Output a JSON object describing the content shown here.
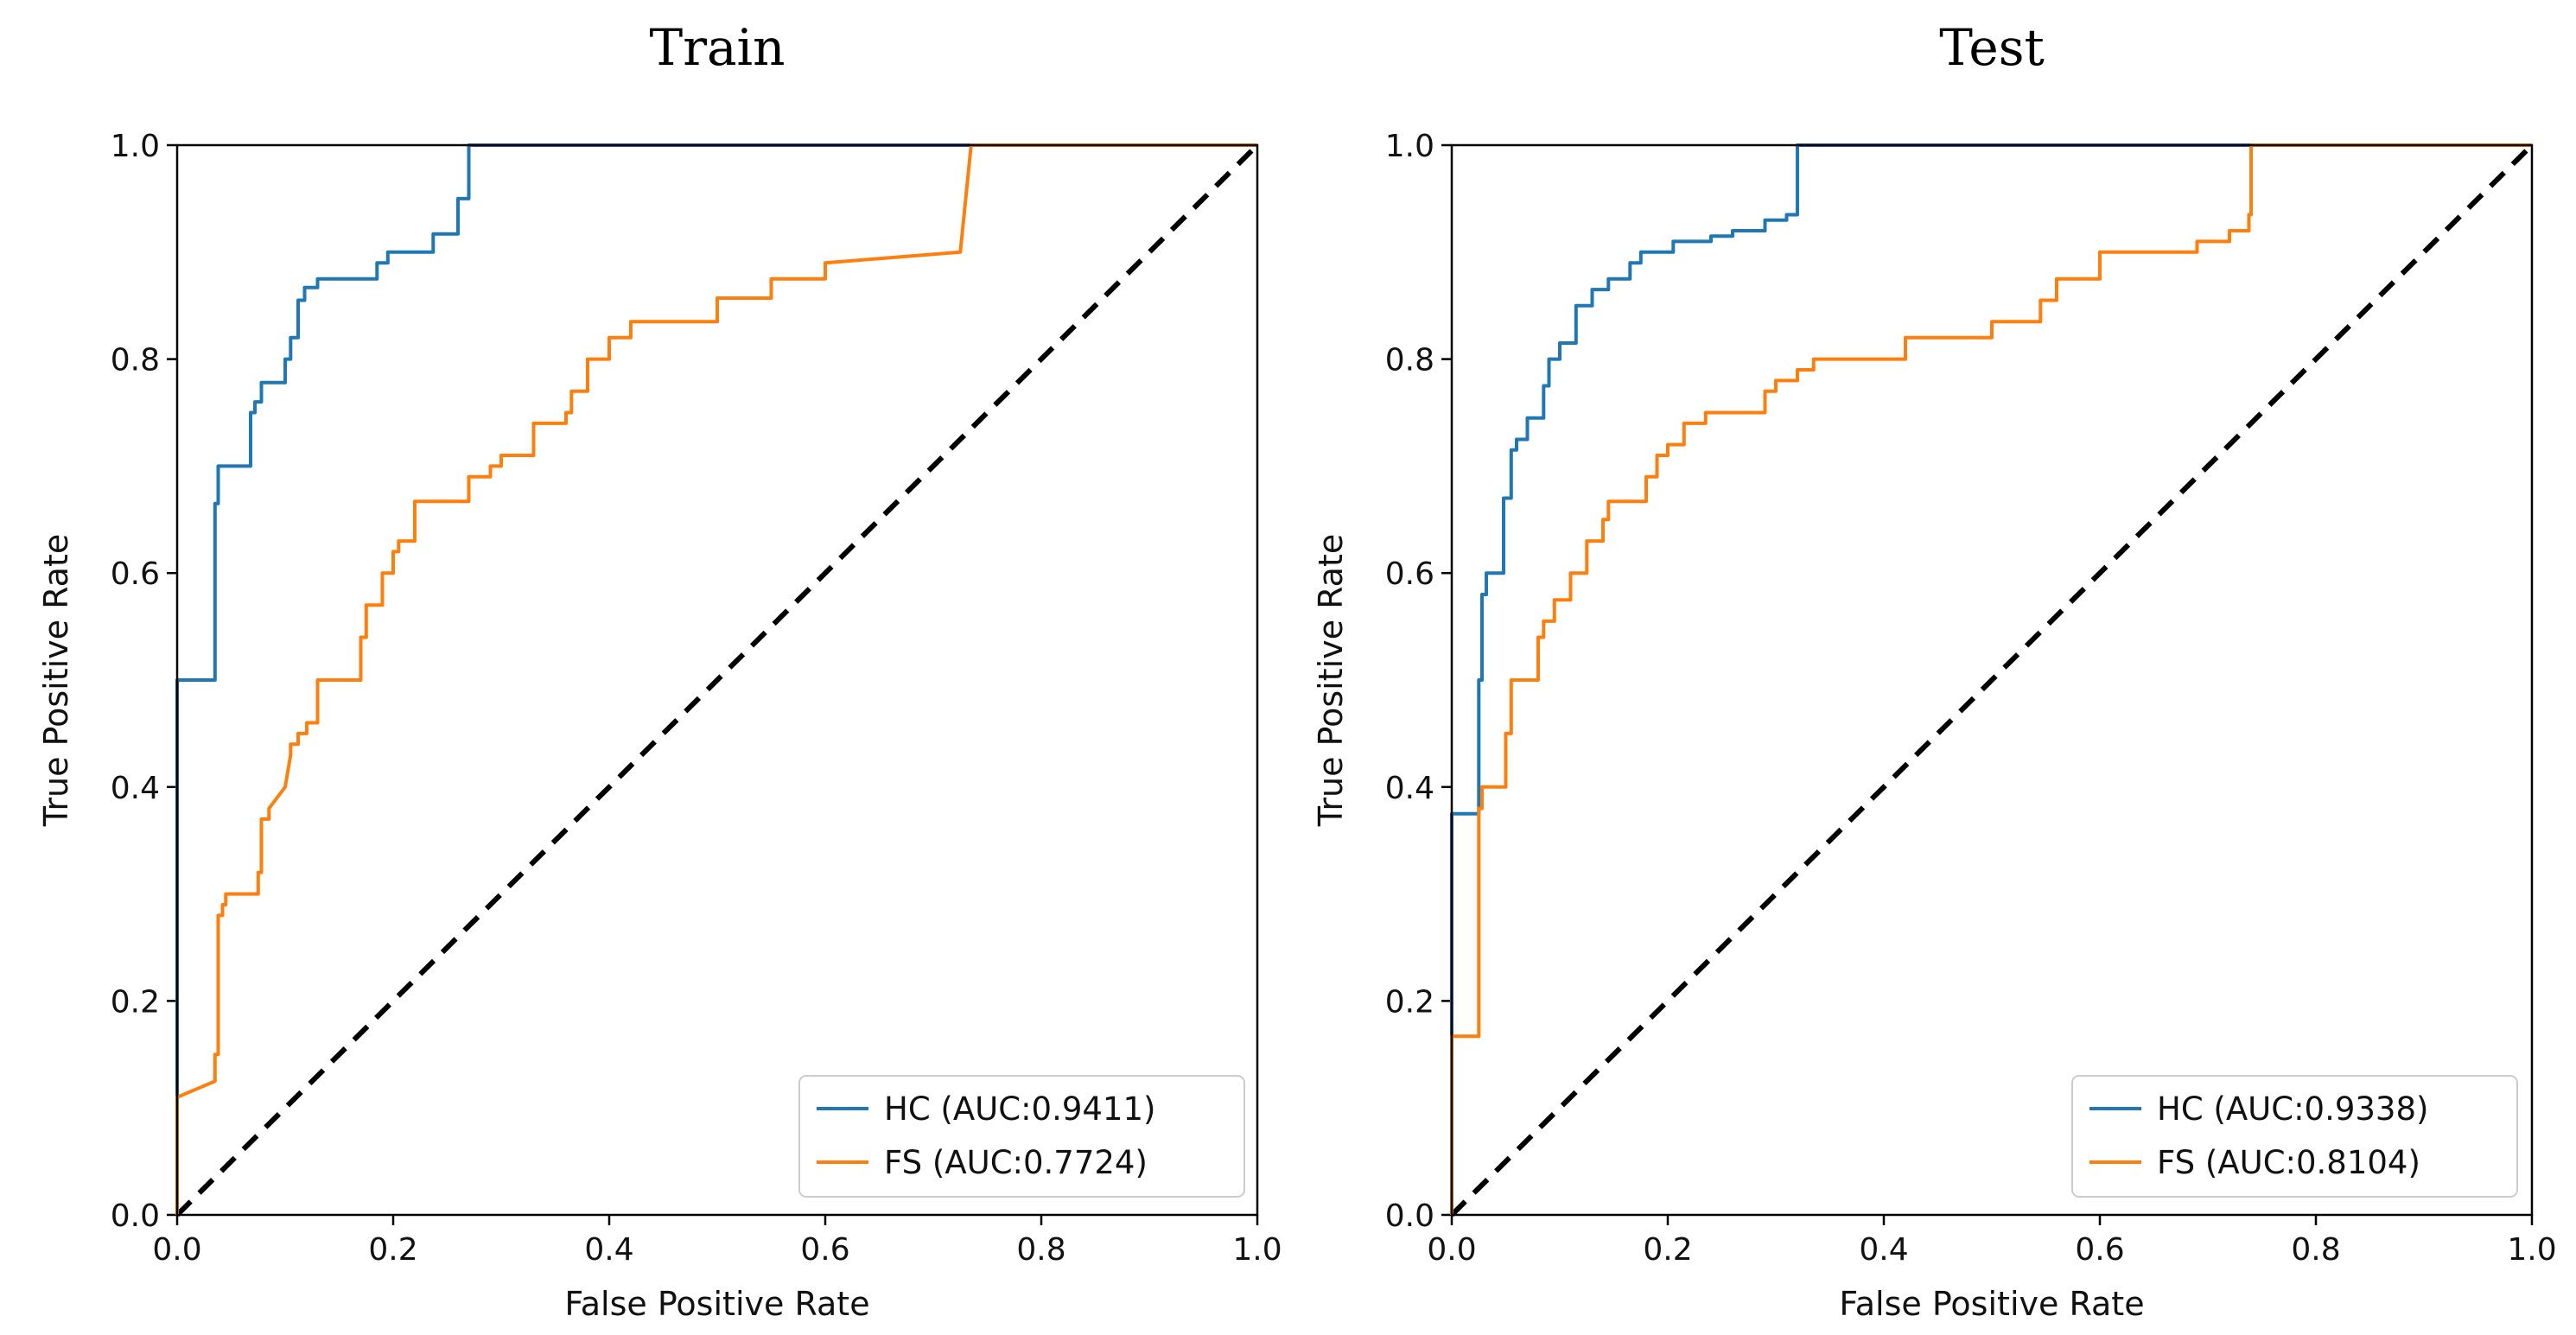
{
  "chart_data": [
    {
      "type": "line",
      "title": "Train",
      "xlabel": "False Positive Rate",
      "ylabel": "True Positive Rate",
      "xlim": [
        0.0,
        1.0
      ],
      "ylim": [
        0.0,
        1.0
      ],
      "xticks": [
        "0.0",
        "0.2",
        "0.4",
        "0.6",
        "0.8",
        "1.0"
      ],
      "yticks": [
        "0.0",
        "0.2",
        "0.4",
        "0.6",
        "0.8",
        "1.0"
      ],
      "legend_position": "lower-right",
      "chance_line": {
        "x": [
          0,
          1
        ],
        "y": [
          0,
          1
        ],
        "style": "dashed",
        "color": "#000000"
      },
      "series": [
        {
          "name": "HC (AUC:0.9411)",
          "color": "#1f77b4",
          "x": [
            0.0,
            0.0,
            0.0,
            0.035,
            0.035,
            0.038,
            0.038,
            0.042,
            0.042,
            0.068,
            0.068,
            0.072,
            0.072,
            0.078,
            0.078,
            0.1,
            0.1,
            0.105,
            0.105,
            0.112,
            0.112,
            0.118,
            0.118,
            0.13,
            0.13,
            0.185,
            0.185,
            0.195,
            0.195,
            0.2,
            0.2,
            0.225,
            0.225,
            0.237,
            0.237,
            0.26,
            0.26,
            0.27,
            0.27,
            0.73,
            1.0
          ],
          "y": [
            0.0,
            0.5,
            0.5,
            0.5,
            0.665,
            0.665,
            0.7,
            0.7,
            0.7,
            0.7,
            0.75,
            0.75,
            0.76,
            0.76,
            0.778,
            0.778,
            0.8,
            0.8,
            0.82,
            0.82,
            0.855,
            0.855,
            0.867,
            0.867,
            0.875,
            0.875,
            0.89,
            0.89,
            0.9,
            0.9,
            0.9,
            0.9,
            0.9,
            0.9,
            0.917,
            0.917,
            0.95,
            0.95,
            1.0,
            1.0,
            1.0
          ]
        },
        {
          "name": "FS (AUC:0.7724)",
          "color": "#ff7f0e",
          "x": [
            0.0,
            0.0,
            0.0,
            0.035,
            0.035,
            0.038,
            0.038,
            0.042,
            0.042,
            0.045,
            0.045,
            0.075,
            0.075,
            0.078,
            0.078,
            0.085,
            0.085,
            0.1,
            0.1,
            0.105,
            0.105,
            0.112,
            0.112,
            0.12,
            0.12,
            0.13,
            0.13,
            0.17,
            0.17,
            0.175,
            0.175,
            0.19,
            0.19,
            0.2,
            0.2,
            0.205,
            0.205,
            0.22,
            0.22,
            0.23,
            0.23,
            0.27,
            0.27,
            0.29,
            0.29,
            0.3,
            0.3,
            0.33,
            0.33,
            0.36,
            0.36,
            0.365,
            0.365,
            0.38,
            0.38,
            0.4,
            0.4,
            0.42,
            0.42,
            0.5,
            0.5,
            0.55,
            0.55,
            0.6,
            0.6,
            0.725,
            0.725,
            0.735,
            1.0
          ],
          "y": [
            0.0,
            0.11,
            0.11,
            0.125,
            0.15,
            0.15,
            0.28,
            0.28,
            0.29,
            0.29,
            0.3,
            0.3,
            0.32,
            0.32,
            0.37,
            0.37,
            0.38,
            0.4,
            0.4,
            0.43,
            0.44,
            0.44,
            0.45,
            0.45,
            0.46,
            0.46,
            0.5,
            0.5,
            0.54,
            0.54,
            0.57,
            0.57,
            0.6,
            0.6,
            0.62,
            0.62,
            0.63,
            0.63,
            0.667,
            0.667,
            0.667,
            0.667,
            0.69,
            0.69,
            0.7,
            0.7,
            0.71,
            0.71,
            0.74,
            0.74,
            0.75,
            0.75,
            0.77,
            0.77,
            0.8,
            0.8,
            0.82,
            0.82,
            0.835,
            0.835,
            0.857,
            0.857,
            0.875,
            0.875,
            0.89,
            0.9,
            0.9,
            1.0,
            1.0
          ]
        }
      ]
    },
    {
      "type": "line",
      "title": "Test",
      "xlabel": "False Positive Rate",
      "ylabel": "True Positive Rate",
      "xlim": [
        0.0,
        1.0
      ],
      "ylim": [
        0.0,
        1.0
      ],
      "xticks": [
        "0.0",
        "0.2",
        "0.4",
        "0.6",
        "0.8",
        "1.0"
      ],
      "yticks": [
        "0.0",
        "0.2",
        "0.4",
        "0.6",
        "0.8",
        "1.0"
      ],
      "legend_position": "lower-right",
      "chance_line": {
        "x": [
          0,
          1
        ],
        "y": [
          0,
          1
        ],
        "style": "dashed",
        "color": "#000000"
      },
      "series": [
        {
          "name": "HC (AUC:0.9338)",
          "color": "#1f77b4",
          "x": [
            0.0,
            0.0,
            0.0,
            0.025,
            0.025,
            0.028,
            0.028,
            0.032,
            0.032,
            0.048,
            0.048,
            0.055,
            0.055,
            0.06,
            0.06,
            0.07,
            0.07,
            0.085,
            0.085,
            0.09,
            0.09,
            0.1,
            0.1,
            0.115,
            0.115,
            0.13,
            0.13,
            0.145,
            0.145,
            0.165,
            0.165,
            0.175,
            0.175,
            0.19,
            0.19,
            0.205,
            0.205,
            0.24,
            0.24,
            0.26,
            0.26,
            0.29,
            0.29,
            0.31,
            0.31,
            0.32,
            0.32,
            1.0
          ],
          "y": [
            0.0,
            0.375,
            0.375,
            0.375,
            0.5,
            0.5,
            0.58,
            0.58,
            0.6,
            0.6,
            0.67,
            0.67,
            0.715,
            0.715,
            0.725,
            0.725,
            0.745,
            0.745,
            0.775,
            0.775,
            0.8,
            0.8,
            0.815,
            0.815,
            0.85,
            0.85,
            0.865,
            0.865,
            0.875,
            0.875,
            0.89,
            0.89,
            0.9,
            0.9,
            0.9,
            0.9,
            0.91,
            0.91,
            0.915,
            0.915,
            0.92,
            0.92,
            0.93,
            0.93,
            0.935,
            0.935,
            1.0,
            1.0
          ]
        },
        {
          "name": "FS (AUC:0.8104)",
          "color": "#ff7f0e",
          "x": [
            0.0,
            0.0,
            0.0,
            0.025,
            0.025,
            0.028,
            0.028,
            0.032,
            0.032,
            0.05,
            0.05,
            0.055,
            0.055,
            0.08,
            0.08,
            0.085,
            0.085,
            0.095,
            0.095,
            0.11,
            0.11,
            0.125,
            0.125,
            0.14,
            0.14,
            0.145,
            0.145,
            0.18,
            0.18,
            0.19,
            0.19,
            0.2,
            0.2,
            0.215,
            0.215,
            0.235,
            0.235,
            0.29,
            0.29,
            0.3,
            0.3,
            0.32,
            0.32,
            0.335,
            0.335,
            0.36,
            0.36,
            0.38,
            0.38,
            0.42,
            0.42,
            0.44,
            0.44,
            0.5,
            0.5,
            0.545,
            0.545,
            0.56,
            0.56,
            0.6,
            0.6,
            0.635,
            0.635,
            0.69,
            0.69,
            0.72,
            0.72,
            0.738,
            0.738,
            0.74,
            0.74,
            1.0
          ],
          "y": [
            0.0,
            0.167,
            0.167,
            0.167,
            0.38,
            0.38,
            0.4,
            0.4,
            0.4,
            0.4,
            0.45,
            0.45,
            0.5,
            0.5,
            0.54,
            0.54,
            0.555,
            0.555,
            0.575,
            0.575,
            0.6,
            0.6,
            0.63,
            0.63,
            0.65,
            0.65,
            0.667,
            0.667,
            0.69,
            0.69,
            0.71,
            0.71,
            0.72,
            0.72,
            0.74,
            0.74,
            0.75,
            0.75,
            0.77,
            0.77,
            0.78,
            0.78,
            0.79,
            0.79,
            0.8,
            0.8,
            0.8,
            0.8,
            0.8,
            0.8,
            0.82,
            0.82,
            0.82,
            0.82,
            0.835,
            0.835,
            0.855,
            0.855,
            0.875,
            0.875,
            0.9,
            0.9,
            0.9,
            0.9,
            0.91,
            0.91,
            0.92,
            0.92,
            0.935,
            0.935,
            1.0,
            1.0
          ]
        }
      ]
    }
  ]
}
